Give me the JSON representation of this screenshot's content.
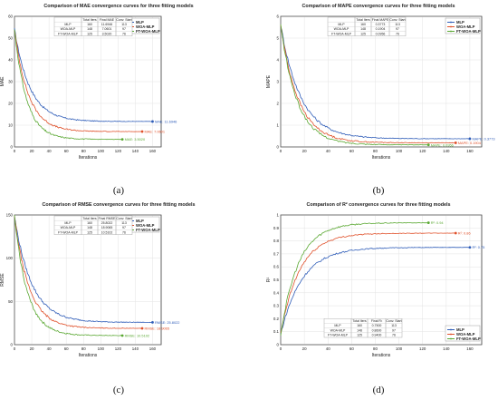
{
  "chart_data": [
    {
      "id": "a",
      "type": "line",
      "caption": "(a)",
      "title": "Comparison of MAE convergence curves for three fitting models",
      "xlabel": "Iterations",
      "ylabel": "MAE",
      "xlim": [
        0,
        170
      ],
      "ylim": [
        0,
        60
      ],
      "xticks": [
        0,
        20,
        40,
        60,
        80,
        100,
        120,
        140,
        160
      ],
      "yticks": [
        0,
        10,
        20,
        30,
        40,
        50,
        60
      ],
      "grid": true,
      "legend_position": "top-right",
      "table": {
        "headers": [
          "",
          "Total Iters",
          "Final MAE",
          "Conv. Start"
        ],
        "rows": [
          [
            "MLP",
            "160",
            "11.6946",
            "113"
          ],
          [
            "WOA-MLP",
            "148",
            "7.0601",
            "97"
          ],
          [
            "FT-WOA-MLP",
            "125",
            "3.5020",
            "76"
          ]
        ]
      },
      "series": [
        {
          "name": "MLP",
          "color": "#2e5cb8",
          "start": 54,
          "final": 11.69,
          "iters": 160,
          "decay": 18,
          "end_label": "MAE: 11.6946"
        },
        {
          "name": "WOA-MLP",
          "color": "#e0502a",
          "start": 54,
          "final": 7.06,
          "iters": 148,
          "decay": 16,
          "end_label": "MAE: 7.0601"
        },
        {
          "name": "FT-WOA-MLP",
          "color": "#5aa832",
          "start": 54,
          "final": 3.5,
          "iters": 125,
          "decay": 14,
          "end_label": "MAE: 3.5020"
        }
      ]
    },
    {
      "id": "b",
      "type": "line",
      "caption": "(b)",
      "title": "Comparison of MAPE convergence curves for three fitting models",
      "xlabel": "Iterations",
      "ylabel": "MAPE",
      "xlim": [
        0,
        170
      ],
      "ylim": [
        0,
        6
      ],
      "xticks": [
        0,
        20,
        40,
        60,
        80,
        100,
        120,
        140,
        160
      ],
      "yticks": [
        0,
        1,
        2,
        3,
        4,
        5,
        6
      ],
      "grid": true,
      "legend_position": "top-right",
      "table": {
        "headers": [
          "",
          "Total Iters",
          "Final MAPE",
          "Conv. Start"
        ],
        "rows": [
          [
            "MLP",
            "160",
            "0.3773",
            "113"
          ],
          [
            "WOA-MLP",
            "148",
            "0.1904",
            "97"
          ],
          [
            "FT-WOA-MLP",
            "125",
            "0.0956",
            "76"
          ]
        ]
      },
      "series": [
        {
          "name": "MLP",
          "color": "#2e5cb8",
          "start": 5.6,
          "final": 0.377,
          "iters": 160,
          "decay": 17,
          "end_label": "MAPE: 0.3773"
        },
        {
          "name": "WOA-MLP",
          "color": "#e0502a",
          "start": 5.6,
          "final": 0.19,
          "iters": 148,
          "decay": 15,
          "end_label": "MAPE: 0.1904"
        },
        {
          "name": "FT-WOA-MLP",
          "color": "#5aa832",
          "start": 5.6,
          "final": 0.096,
          "iters": 125,
          "decay": 14,
          "end_label": "MAPE: 0.0956"
        }
      ]
    },
    {
      "id": "c",
      "type": "line",
      "caption": "(c)",
      "title": "Comparison of RMSE convergence curves for three fitting models",
      "xlabel": "Iterations",
      "ylabel": "RMSE",
      "xlim": [
        0,
        170
      ],
      "ylim": [
        0,
        150
      ],
      "xticks": [
        0,
        20,
        40,
        60,
        80,
        100,
        120,
        140,
        160
      ],
      "yticks": [
        0,
        50,
        100,
        150
      ],
      "grid": true,
      "legend_position": "top-right",
      "table": {
        "headers": [
          "",
          "Total Iters",
          "Final RMSE",
          "Conv. Start"
        ],
        "rows": [
          [
            "MLP",
            "160",
            "25.8022",
            "113"
          ],
          [
            "WOA-MLP",
            "148",
            "18.9065",
            "97"
          ],
          [
            "FT-WOA-MLP",
            "125",
            "10.5102",
            "76"
          ]
        ]
      },
      "series": [
        {
          "name": "MLP",
          "color": "#2e5cb8",
          "start": 148,
          "final": 25.8,
          "iters": 160,
          "decay": 20,
          "end_label": "RMSE: 25.8022"
        },
        {
          "name": "WOA-MLP",
          "color": "#e0502a",
          "start": 148,
          "final": 18.91,
          "iters": 148,
          "decay": 17,
          "end_label": "RMSE: 18.9065"
        },
        {
          "name": "FT-WOA-MLP",
          "color": "#5aa832",
          "start": 148,
          "final": 10.51,
          "iters": 125,
          "decay": 15,
          "end_label": "RMSE: 10.5102"
        }
      ]
    },
    {
      "id": "d",
      "type": "line",
      "caption": "(d)",
      "title": "Comparison of R² convergence curves for three fitting models",
      "xlabel": "Iterations",
      "ylabel": "R²",
      "xlim": [
        0,
        170
      ],
      "ylim": [
        0,
        1
      ],
      "xticks": [
        0,
        20,
        40,
        60,
        80,
        100,
        120,
        140,
        160
      ],
      "yticks": [
        0,
        0.1,
        0.2,
        0.3,
        0.4,
        0.5,
        0.6,
        0.7,
        0.8,
        0.9,
        1
      ],
      "grid": true,
      "legend_position": "bottom-right",
      "table": {
        "headers": [
          "",
          "Total Iters",
          "Final R²",
          "Conv. Start"
        ],
        "rows": [
          [
            "MLP",
            "160",
            "0.7500",
            "113"
          ],
          [
            "WOA-MLP",
            "148",
            "0.8600",
            "97"
          ],
          [
            "FT-WOA-MLP",
            "125",
            "0.9400",
            "76"
          ]
        ]
      },
      "series": [
        {
          "name": "MLP",
          "color": "#2e5cb8",
          "start": 0.08,
          "final": 0.75,
          "iters": 160,
          "decay": 18,
          "end_label": "R²: 0.75"
        },
        {
          "name": "WOA-MLP",
          "color": "#e0502a",
          "start": 0.08,
          "final": 0.86,
          "iters": 148,
          "decay": 16,
          "end_label": "R²: 0.86"
        },
        {
          "name": "FT-WOA-MLP",
          "color": "#5aa832",
          "start": 0.08,
          "final": 0.94,
          "iters": 125,
          "decay": 15,
          "end_label": "R²: 0.94"
        }
      ]
    }
  ]
}
